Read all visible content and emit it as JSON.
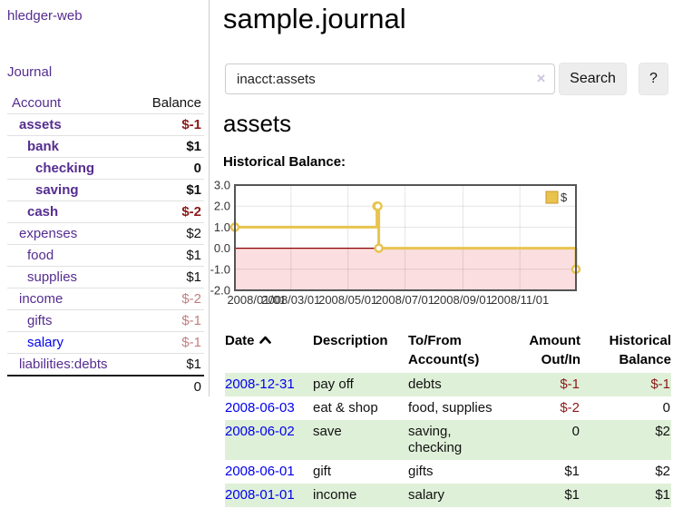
{
  "app": {
    "brand": "hledger-web",
    "nav": {
      "journal": "Journal"
    }
  },
  "sidebar": {
    "table_headers": {
      "account": "Account",
      "balance": "Balance"
    },
    "accounts": [
      {
        "name": "assets",
        "level": 1,
        "bold": true,
        "balance": "$-1",
        "balance_style": "neg-strong"
      },
      {
        "name": "bank",
        "level": 2,
        "bold": true,
        "balance": "$1",
        "balance_style": "pos"
      },
      {
        "name": "checking",
        "level": 3,
        "bold": true,
        "balance": "0",
        "balance_style": "pos"
      },
      {
        "name": "saving",
        "level": 3,
        "bold": true,
        "balance": "$1",
        "balance_style": "pos"
      },
      {
        "name": "cash",
        "level": 2,
        "bold": true,
        "balance": "$-2",
        "balance_style": "neg-strong"
      },
      {
        "name": "expenses",
        "level": 1,
        "bold": false,
        "balance": "$2",
        "balance_style": "pos"
      },
      {
        "name": "food",
        "level": 2,
        "bold": false,
        "balance": "$1",
        "balance_style": "pos"
      },
      {
        "name": "supplies",
        "level": 2,
        "bold": false,
        "balance": "$1",
        "balance_style": "pos"
      },
      {
        "name": "income",
        "level": 1,
        "bold": false,
        "balance": "$-2",
        "balance_style": "neg-muted"
      },
      {
        "name": "gifts",
        "level": 2,
        "bold": false,
        "balance": "$-1",
        "balance_style": "neg-muted"
      },
      {
        "name": "salary",
        "level": 2,
        "bold": false,
        "balance": "$-1",
        "balance_style": "neg-muted",
        "link_color": "blue"
      },
      {
        "name": "liabilities:debts",
        "level": 1,
        "bold": false,
        "balance": "$1",
        "balance_style": "pos"
      }
    ],
    "total": "0"
  },
  "header": {
    "title": "sample.journal"
  },
  "search": {
    "value": "inacct:assets",
    "clear_icon": "✕",
    "button": "Search",
    "help_button": "?"
  },
  "account_page": {
    "heading": "assets",
    "chart_label": "Historical Balance:"
  },
  "chart_data": {
    "type": "line",
    "step": true,
    "title": "Historical Balance:",
    "legend": {
      "label": "$",
      "position": "top-right"
    },
    "series": [
      {
        "name": "$",
        "color": "#e8c44f",
        "points": [
          {
            "x": "2008-01-01",
            "v": 1
          },
          {
            "x": "2008-06-01",
            "v": 2
          },
          {
            "x": "2008-06-02",
            "v": 2
          },
          {
            "x": "2008-06-03",
            "v": 0
          },
          {
            "x": "2008-12-31",
            "v": -1
          }
        ]
      }
    ],
    "x_range": [
      "2008-01-01",
      "2008-12-31"
    ],
    "x_ticks": [
      "2008/01/01",
      "2008/03/01",
      "2008/05/01",
      "2008/07/01",
      "2008/09/01",
      "2008/11/01"
    ],
    "y_ticks": [
      "3.0",
      "2.0",
      "1.0",
      "0.0",
      "-1.0",
      "-2.0"
    ],
    "ylim": [
      -2,
      3
    ],
    "grid": true,
    "colors": {
      "negative_region": "#fbdee0",
      "zero_line": "#8b0000",
      "border": "#555555",
      "gridline": "rgba(0,0,0,0.10)"
    }
  },
  "register": {
    "headers": {
      "date": "Date",
      "description": "Description",
      "accounts": "To/From Account(s)",
      "amount": "Amount Out/In",
      "balance": "Historical Balance"
    },
    "rows": [
      {
        "date": "2008-12-31",
        "description": "pay off",
        "accounts": "debts",
        "amount": "$-1",
        "amount_neg": true,
        "balance": "$-1",
        "balance_neg": true
      },
      {
        "date": "2008-06-03",
        "description": "eat & shop",
        "accounts": "food, supplies",
        "amount": "$-2",
        "amount_neg": true,
        "balance": "0",
        "balance_neg": false
      },
      {
        "date": "2008-06-02",
        "description": "save",
        "accounts": "saving, checking",
        "amount": "0",
        "amount_neg": false,
        "balance": "$2",
        "balance_neg": false
      },
      {
        "date": "2008-06-01",
        "description": "gift",
        "accounts": "gifts",
        "amount": "$1",
        "amount_neg": false,
        "balance": "$2",
        "balance_neg": false
      },
      {
        "date": "2008-01-01",
        "description": "income",
        "accounts": "salary",
        "amount": "$1",
        "amount_neg": false,
        "balance": "$1",
        "balance_neg": false
      }
    ]
  },
  "colors": {
    "link_purple": "#552d90",
    "link_blue": "#0000ee",
    "negative_strong": "#8b1a1a",
    "negative_muted": "#c08080",
    "row_stripe_green": "#dff0d8",
    "series_gold": "#e8c44f"
  }
}
